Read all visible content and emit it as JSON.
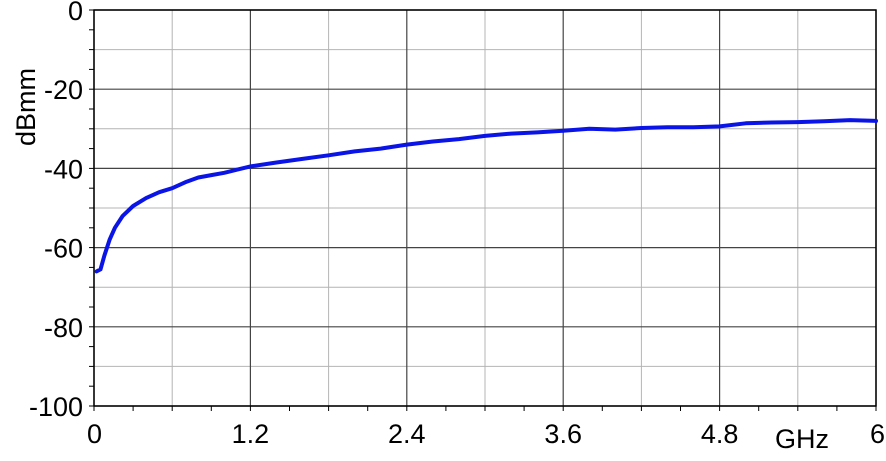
{
  "chart_data": {
    "type": "line",
    "title": "",
    "xlabel": "GHz",
    "ylabel": "dBmm",
    "xlim": [
      0,
      6
    ],
    "ylim": [
      -100,
      0
    ],
    "x_ticks": [
      0,
      1.2,
      2.4,
      3.6,
      4.8,
      6
    ],
    "x_tick_labels": [
      "0",
      "1.2",
      "2.4",
      "3.6",
      "4.8",
      "6"
    ],
    "y_ticks": [
      0,
      -20,
      -40,
      -60,
      -80,
      -100
    ],
    "y_tick_labels": [
      "0",
      "-20",
      "-40",
      "-60",
      "-80",
      "-100"
    ],
    "grid": true,
    "legend": "none",
    "colors": {
      "series": "#0a14e6",
      "grid_major": "#444444",
      "grid_minor": "#b4b4b4",
      "frame": "#000000"
    },
    "series": [
      {
        "x": [
          0.02,
          0.05,
          0.08,
          0.12,
          0.16,
          0.22,
          0.3,
          0.4,
          0.5,
          0.6,
          0.7,
          0.8,
          0.9,
          1.0,
          1.1,
          1.2,
          1.4,
          1.6,
          1.8,
          2.0,
          2.2,
          2.4,
          2.6,
          2.8,
          3.0,
          3.2,
          3.4,
          3.6,
          3.8,
          4.0,
          4.2,
          4.4,
          4.6,
          4.8,
          5.0,
          5.2,
          5.4,
          5.6,
          5.8,
          6.0
        ],
        "y": [
          -66,
          -65.5,
          -62,
          -58,
          -55,
          -52,
          -49.5,
          -47.5,
          -46,
          -45,
          -43.5,
          -42.3,
          -41.7,
          -41.1,
          -40.3,
          -39.5,
          -38.5,
          -37.6,
          -36.7,
          -35.7,
          -35,
          -34,
          -33.2,
          -32.6,
          -31.8,
          -31.2,
          -30.9,
          -30.5,
          -30,
          -30.2,
          -29.8,
          -29.6,
          -29.6,
          -29.4,
          -28.6,
          -28.4,
          -28.3,
          -28.1,
          -27.8,
          -28
        ]
      }
    ]
  }
}
